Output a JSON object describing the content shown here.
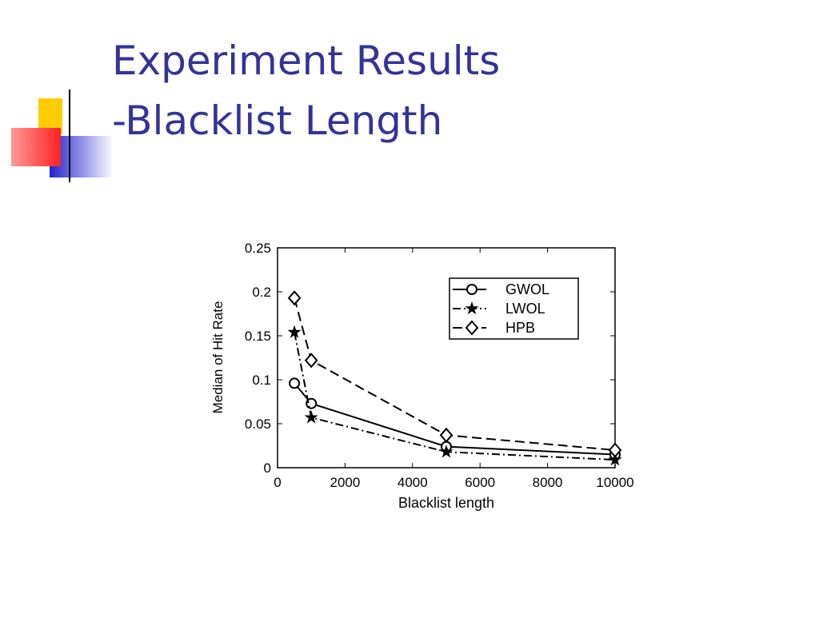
{
  "slide": {
    "title_lines": [
      "Experiment Results",
      "-Blacklist Length"
    ]
  },
  "chart_data": {
    "type": "line",
    "xlabel": "Blacklist length",
    "ylabel": "Median of Hit Rate",
    "x": [
      500,
      1000,
      5000,
      10000
    ],
    "series": [
      {
        "name": "GWOL",
        "color": "#000000",
        "linestyle": "solid",
        "marker": "circle",
        "values": [
          0.096,
          0.073,
          0.024,
          0.015
        ]
      },
      {
        "name": "LWOL",
        "color": "#000000",
        "linestyle": "dashdot",
        "marker": "star",
        "values": [
          0.154,
          0.057,
          0.018,
          0.009
        ]
      },
      {
        "name": "HPB",
        "color": "#000000",
        "linestyle": "dashed",
        "marker": "diamond",
        "values": [
          0.193,
          0.122,
          0.037,
          0.02
        ]
      }
    ],
    "xlim": [
      0,
      10000
    ],
    "xticks": [
      0,
      2000,
      4000,
      6000,
      8000,
      10000
    ],
    "ylim": [
      0,
      0.25
    ],
    "yticks": [
      0,
      0.05,
      0.1,
      0.15,
      0.2,
      0.25
    ],
    "grid": false,
    "legend": "upper right"
  }
}
